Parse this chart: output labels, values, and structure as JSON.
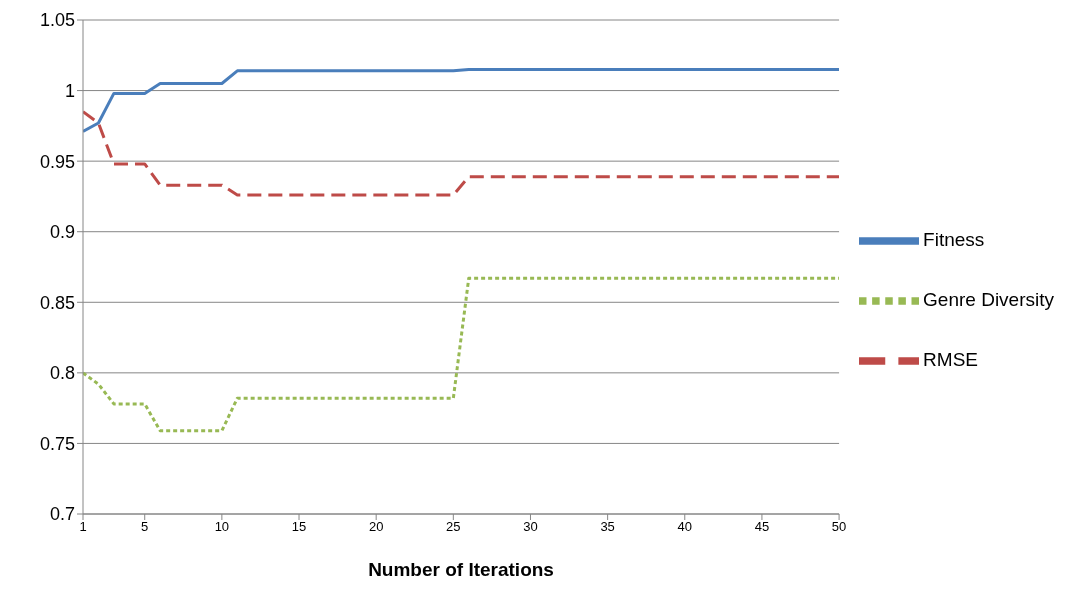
{
  "chart_data": {
    "type": "line",
    "xlabel": "Number of Iterations",
    "x": [
      1,
      2,
      3,
      4,
      5,
      6,
      7,
      8,
      9,
      10,
      11,
      12,
      13,
      14,
      15,
      16,
      17,
      18,
      19,
      20,
      21,
      22,
      23,
      24,
      25,
      26,
      27,
      28,
      29,
      30,
      31,
      32,
      33,
      34,
      35,
      36,
      37,
      38,
      39,
      40,
      41,
      42,
      43,
      44,
      45,
      46,
      47,
      48,
      49,
      50
    ],
    "series": [
      {
        "name": "Fitness",
        "color": "#4a7ebb",
        "line_style": "solid",
        "values": [
          0.971,
          0.977,
          0.998,
          0.998,
          0.998,
          1.005,
          1.005,
          1.005,
          1.005,
          1.005,
          1.014,
          1.014,
          1.014,
          1.014,
          1.014,
          1.014,
          1.014,
          1.014,
          1.014,
          1.014,
          1.014,
          1.014,
          1.014,
          1.014,
          1.014,
          1.015,
          1.015,
          1.015,
          1.015,
          1.015,
          1.015,
          1.015,
          1.015,
          1.015,
          1.015,
          1.015,
          1.015,
          1.015,
          1.015,
          1.015,
          1.015,
          1.015,
          1.015,
          1.015,
          1.015,
          1.015,
          1.015,
          1.015,
          1.015,
          1.015
        ]
      },
      {
        "name": "RMSE",
        "color": "#be4b48",
        "line_style": "dashed",
        "values": [
          0.985,
          0.977,
          0.948,
          0.948,
          0.948,
          0.933,
          0.933,
          0.933,
          0.933,
          0.933,
          0.926,
          0.926,
          0.926,
          0.926,
          0.926,
          0.926,
          0.926,
          0.926,
          0.926,
          0.926,
          0.926,
          0.926,
          0.926,
          0.926,
          0.926,
          0.939,
          0.939,
          0.939,
          0.939,
          0.939,
          0.939,
          0.939,
          0.939,
          0.939,
          0.939,
          0.939,
          0.939,
          0.939,
          0.939,
          0.939,
          0.939,
          0.939,
          0.939,
          0.939,
          0.939,
          0.939,
          0.939,
          0.939,
          0.939,
          0.939
        ]
      },
      {
        "name": "Genre Diversity",
        "color": "#98b954",
        "line_style": "dotted",
        "values": [
          0.8,
          0.792,
          0.778,
          0.778,
          0.778,
          0.759,
          0.759,
          0.759,
          0.759,
          0.759,
          0.782,
          0.782,
          0.782,
          0.782,
          0.782,
          0.782,
          0.782,
          0.782,
          0.782,
          0.782,
          0.782,
          0.782,
          0.782,
          0.782,
          0.782,
          0.867,
          0.867,
          0.867,
          0.867,
          0.867,
          0.867,
          0.867,
          0.867,
          0.867,
          0.867,
          0.867,
          0.867,
          0.867,
          0.867,
          0.867,
          0.867,
          0.867,
          0.867,
          0.867,
          0.867,
          0.867,
          0.867,
          0.867,
          0.867,
          0.867
        ]
      }
    ],
    "xlim": [
      1,
      50
    ],
    "xticks": [
      1,
      5,
      10,
      15,
      20,
      25,
      30,
      35,
      40,
      45,
      50
    ],
    "ylim": [
      0.7,
      1.05
    ],
    "yticks": [
      0.7,
      0.75,
      0.8,
      0.85,
      0.9,
      0.95,
      1,
      1.05
    ],
    "grid": "y",
    "legend": "right",
    "marker": "none"
  }
}
